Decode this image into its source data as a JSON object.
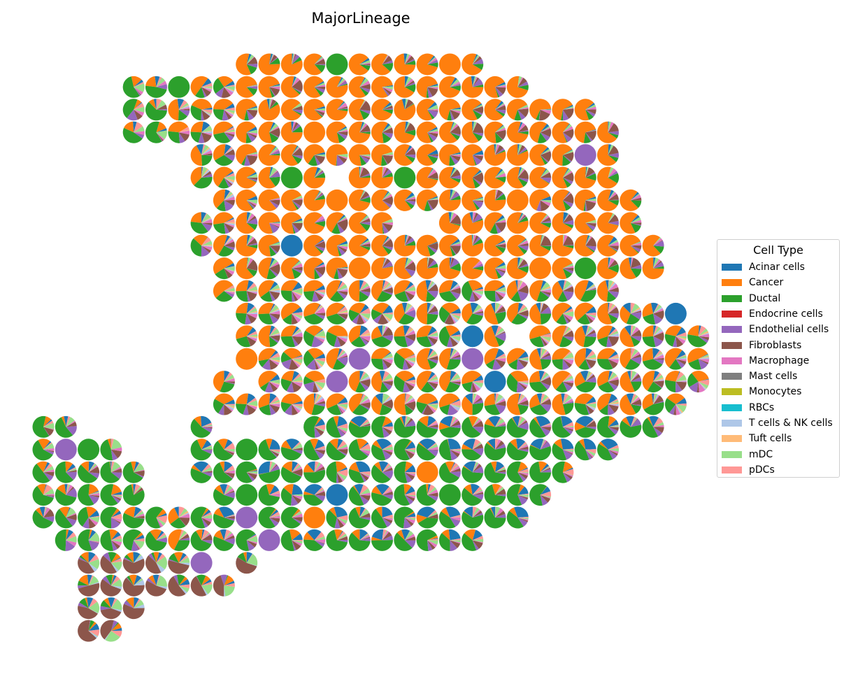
{
  "chart_data": {
    "type": "pie",
    "subtype": "spatial-scatter-pie",
    "title": "MajorLineage",
    "legend": {
      "title": "Cell Type",
      "placement": "right",
      "entries": [
        {
          "name": "Acinar cells",
          "color": "#1f77b4"
        },
        {
          "name": "Cancer",
          "color": "#ff7f0e"
        },
        {
          "name": "Ductal",
          "color": "#2ca02c"
        },
        {
          "name": "Endocrine cells",
          "color": "#d62728"
        },
        {
          "name": "Endothelial cells",
          "color": "#9467bd"
        },
        {
          "name": "Fibroblasts",
          "color": "#8c564b"
        },
        {
          "name": "Macrophage",
          "color": "#e377c2"
        },
        {
          "name": "Mast cells",
          "color": "#7f7f7f"
        },
        {
          "name": "Monocytes",
          "color": "#bcbd22"
        },
        {
          "name": "RBCs",
          "color": "#17becf"
        },
        {
          "name": "T cells & NK cells",
          "color": "#aec7e8"
        },
        {
          "name": "Tuft cells",
          "color": "#ffbb78"
        },
        {
          "name": "mDC",
          "color": "#98df8a"
        },
        {
          "name": "pDCs",
          "color": "#ff9896"
        }
      ]
    },
    "axes_visible": false,
    "grid": false,
    "spot_rows": [
      {
        "y": 0,
        "cols": [
          9,
          10,
          11,
          12,
          13,
          14,
          15,
          16,
          17,
          18,
          19
        ]
      },
      {
        "y": 1,
        "cols": [
          4,
          5,
          6,
          7,
          8,
          9,
          10,
          11,
          12,
          13,
          14,
          15,
          16,
          17,
          18,
          19,
          20,
          21
        ]
      },
      {
        "y": 2,
        "cols": [
          4,
          5,
          6,
          7,
          8,
          9,
          10,
          11,
          12,
          13,
          14,
          15,
          16,
          17,
          18,
          19,
          20,
          21,
          22,
          23,
          24
        ]
      },
      {
        "y": 3,
        "cols": [
          4,
          5,
          6,
          7,
          8,
          9,
          10,
          11,
          12,
          13,
          14,
          15,
          16,
          17,
          18,
          19,
          20,
          21,
          22,
          23,
          24,
          25
        ]
      },
      {
        "y": 4,
        "cols": [
          7,
          8,
          9,
          10,
          11,
          12,
          13,
          14,
          15,
          16,
          17,
          18,
          19,
          20,
          21,
          22,
          23,
          24,
          25
        ]
      },
      {
        "y": 5,
        "cols": [
          7,
          8,
          9,
          10,
          11,
          12,
          14,
          15,
          16,
          17,
          18,
          19,
          20,
          21,
          22,
          23,
          24,
          25
        ]
      },
      {
        "y": 6,
        "cols": [
          8,
          9,
          10,
          11,
          12,
          13,
          14,
          15,
          16,
          17,
          18,
          19,
          20,
          21,
          22,
          23,
          24,
          25,
          26
        ]
      },
      {
        "y": 7,
        "cols": [
          7,
          8,
          9,
          10,
          11,
          12,
          13,
          14,
          15,
          18,
          19,
          20,
          21,
          22,
          23,
          24,
          25,
          26
        ]
      },
      {
        "y": 8,
        "cols": [
          7,
          8,
          9,
          10,
          11,
          12,
          13,
          14,
          15,
          16,
          17,
          18,
          19,
          20,
          21,
          22,
          23,
          24,
          25,
          26,
          27
        ]
      },
      {
        "y": 9,
        "cols": [
          8,
          9,
          10,
          11,
          12,
          13,
          14,
          15,
          16,
          17,
          18,
          19,
          20,
          21,
          22,
          23,
          24,
          25,
          26,
          27
        ]
      },
      {
        "y": 10,
        "cols": [
          8,
          9,
          10,
          11,
          12,
          13,
          14,
          15,
          16,
          17,
          18,
          19,
          20,
          21,
          22,
          23,
          24,
          25
        ]
      },
      {
        "y": 11,
        "cols": [
          9,
          10,
          11,
          12,
          13,
          14,
          15,
          16,
          17,
          18,
          19,
          20,
          21,
          22,
          23,
          24,
          25,
          26,
          27,
          28
        ]
      },
      {
        "y": 12,
        "cols": [
          9,
          10,
          11,
          12,
          13,
          14,
          15,
          16,
          17,
          18,
          19,
          20,
          22,
          23,
          24,
          25,
          26,
          27,
          28,
          29
        ]
      },
      {
        "y": 13,
        "cols": [
          9,
          10,
          11,
          12,
          13,
          14,
          15,
          16,
          17,
          18,
          19,
          20,
          21,
          22,
          23,
          24,
          25,
          26,
          27,
          28,
          29
        ]
      },
      {
        "y": 14,
        "cols": [
          8,
          10,
          11,
          12,
          13,
          14,
          15,
          16,
          17,
          18,
          19,
          20,
          21,
          22,
          23,
          24,
          25,
          26,
          27,
          28,
          29
        ]
      },
      {
        "y": 15,
        "cols": [
          8,
          9,
          10,
          11,
          12,
          13,
          14,
          15,
          16,
          17,
          18,
          19,
          20,
          21,
          22,
          23,
          24,
          25,
          26,
          27,
          28
        ]
      },
      {
        "y": 16,
        "cols": [
          0,
          1,
          7,
          12,
          13,
          14,
          15,
          16,
          17,
          18,
          19,
          20,
          21,
          22,
          23,
          24,
          25,
          26,
          27
        ]
      },
      {
        "y": 17,
        "cols": [
          0,
          1,
          2,
          3,
          7,
          8,
          9,
          10,
          11,
          12,
          13,
          14,
          15,
          16,
          17,
          18,
          19,
          20,
          21,
          22,
          23,
          24,
          25
        ]
      },
      {
        "y": 18,
        "cols": [
          0,
          1,
          2,
          3,
          4,
          7,
          8,
          9,
          10,
          11,
          12,
          13,
          14,
          15,
          16,
          17,
          18,
          19,
          20,
          21,
          22,
          23
        ]
      },
      {
        "y": 19,
        "cols": [
          0,
          1,
          2,
          3,
          4,
          8,
          9,
          10,
          11,
          12,
          13,
          14,
          15,
          16,
          17,
          18,
          19,
          20,
          21,
          22
        ]
      },
      {
        "y": 20,
        "cols": [
          0,
          1,
          2,
          3,
          4,
          5,
          6,
          7,
          8,
          9,
          10,
          11,
          12,
          13,
          14,
          15,
          16,
          17,
          18,
          19,
          20,
          21
        ]
      },
      {
        "y": 21,
        "cols": [
          1,
          2,
          3,
          4,
          5,
          6,
          7,
          8,
          9,
          10,
          11,
          12,
          13,
          14,
          15,
          16,
          17,
          18,
          19
        ]
      },
      {
        "y": 22,
        "cols": [
          2,
          3,
          4,
          5,
          6,
          7,
          9
        ]
      },
      {
        "y": 23,
        "cols": [
          2,
          3,
          4,
          5,
          6,
          7,
          8
        ]
      },
      {
        "y": 24,
        "cols": [
          2,
          3,
          4
        ]
      },
      {
        "y": 25,
        "cols": [
          2,
          3
        ]
      }
    ]
  }
}
